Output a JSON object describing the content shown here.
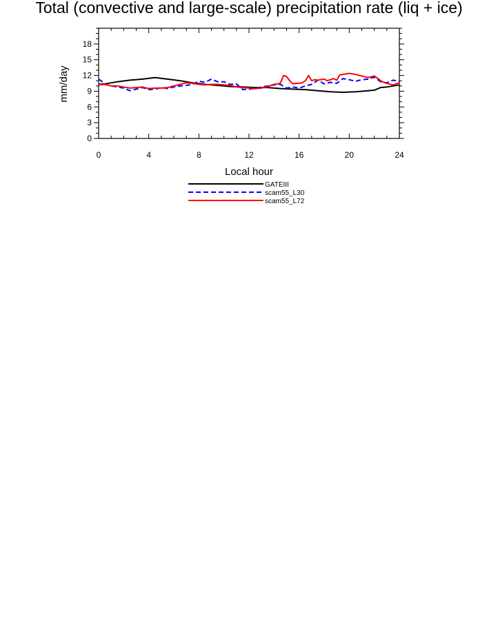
{
  "chart_data": {
    "type": "line",
    "title": "Total (convective and large-scale) precipitation rate (liq + ice)",
    "xlabel": "Local hour",
    "ylabel": "mm/day",
    "xlim": [
      0,
      24
    ],
    "ylim": [
      0,
      21
    ],
    "xticks": [
      0,
      4,
      8,
      12,
      16,
      20,
      24
    ],
    "yticks": [
      0,
      3,
      6,
      9,
      12,
      15,
      18
    ],
    "grid": false,
    "legend_position": "bottom-center",
    "series": [
      {
        "name": "GATEIII",
        "color": "#000000",
        "dash": "solid",
        "x": [
          0,
          0.5,
          1.5,
          2.5,
          3.5,
          4.5,
          5.5,
          6.5,
          7.5,
          8.5,
          9.5,
          10.5,
          11.5,
          12.5,
          13.5,
          14.5,
          15.5,
          16.5,
          17.5,
          18.5,
          19.5,
          20.5,
          21.5,
          22,
          22.5,
          23,
          24
        ],
        "y": [
          10.3,
          10.4,
          10.8,
          11.1,
          11.3,
          11.6,
          11.3,
          11.0,
          10.6,
          10.3,
          10.1,
          9.9,
          9.8,
          9.7,
          9.7,
          9.5,
          9.4,
          9.3,
          9.1,
          8.9,
          8.8,
          8.9,
          9.1,
          9.2,
          9.7,
          9.8,
          10.2
        ]
      },
      {
        "name": "scam55_L30",
        "color": "#0000ff",
        "dash": "dashed",
        "x": [
          0,
          0.25,
          0.5,
          1.0,
          1.5,
          2.0,
          2.5,
          3.0,
          3.5,
          4.0,
          4.5,
          5.0,
          5.5,
          6.0,
          6.5,
          7.0,
          7.5,
          8.0,
          8.5,
          9.0,
          9.5,
          10.0,
          10.5,
          11.0,
          11.5,
          12.0,
          12.5,
          13.0,
          13.5,
          14.0,
          14.5,
          15.0,
          15.5,
          16.0,
          16.5,
          17.0,
          17.5,
          18.0,
          18.5,
          19.0,
          19.5,
          20.0,
          20.5,
          21.0,
          21.5,
          22.0,
          22.5,
          23.0,
          23.5,
          24.0
        ],
        "y": [
          11.3,
          10.9,
          10.3,
          10.0,
          9.8,
          9.6,
          9.1,
          9.4,
          9.7,
          9.3,
          9.4,
          9.7,
          9.5,
          9.8,
          10.0,
          10.1,
          10.3,
          10.9,
          10.7,
          11.3,
          10.8,
          10.8,
          10.3,
          10.4,
          9.3,
          9.4,
          9.5,
          9.8,
          10.0,
          10.2,
          10.3,
          9.6,
          9.8,
          9.6,
          10.0,
          10.3,
          11.1,
          10.4,
          10.7,
          10.5,
          11.4,
          11.2,
          10.9,
          11.2,
          11.3,
          11.7,
          10.8,
          10.6,
          11.1,
          10.9
        ]
      },
      {
        "name": "scam55_L72",
        "color": "#ff0000",
        "dash": "solid",
        "x": [
          0,
          0.5,
          1.0,
          1.5,
          2.0,
          2.5,
          3.0,
          3.5,
          4.0,
          4.5,
          5.0,
          5.5,
          6.0,
          6.5,
          7.0,
          7.5,
          8.0,
          8.5,
          9.0,
          9.5,
          10.0,
          10.5,
          11.0,
          11.5,
          12.0,
          12.5,
          13.0,
          13.5,
          14.0,
          14.5,
          14.75,
          15.0,
          15.25,
          15.5,
          15.75,
          16.0,
          16.25,
          16.5,
          16.75,
          17.0,
          17.25,
          17.5,
          18.0,
          18.25,
          18.5,
          18.75,
          19.0,
          19.25,
          19.5,
          19.75,
          20.0,
          20.5,
          21.0,
          21.5,
          22.0,
          22.25,
          22.5,
          22.75,
          23.0,
          23.5,
          24.0
        ],
        "y": [
          10.2,
          10.3,
          10.0,
          10.0,
          9.8,
          9.6,
          9.7,
          9.8,
          9.5,
          9.6,
          9.6,
          9.7,
          10.0,
          10.3,
          10.6,
          10.5,
          10.3,
          10.2,
          10.3,
          10.3,
          10.2,
          10.1,
          9.8,
          9.7,
          9.6,
          9.5,
          9.6,
          9.9,
          10.3,
          10.5,
          12.0,
          11.8,
          11.0,
          10.4,
          10.5,
          10.5,
          10.6,
          11.0,
          12.0,
          11.0,
          11.2,
          11.1,
          11.3,
          11.0,
          11.2,
          11.4,
          11.1,
          12.1,
          12.2,
          12.3,
          12.4,
          12.2,
          11.9,
          11.6,
          11.9,
          11.5,
          11.0,
          10.7,
          10.5,
          10.2,
          10.6
        ]
      }
    ]
  }
}
